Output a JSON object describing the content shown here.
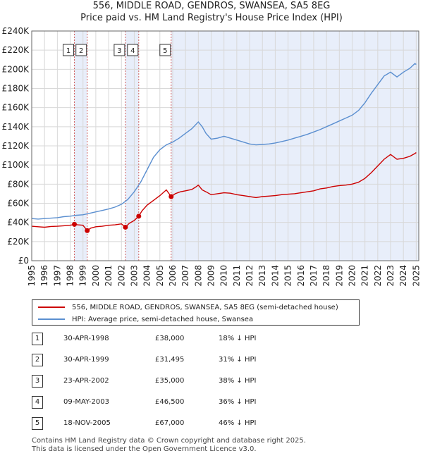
{
  "chart_data": {
    "type": "line",
    "title": "556, MIDDLE ROAD, GENDROS, SWANSEA, SA5 8EG",
    "subtitle": "Price paid vs. HM Land Registry's House Price Index (HPI)",
    "xlim": [
      1995,
      2025.2
    ],
    "ylim": [
      0,
      240000
    ],
    "y_ticks": [
      {
        "value": 0,
        "label": "£0"
      },
      {
        "value": 20000,
        "label": "£20K"
      },
      {
        "value": 40000,
        "label": "£40K"
      },
      {
        "value": 60000,
        "label": "£60K"
      },
      {
        "value": 80000,
        "label": "£80K"
      },
      {
        "value": 100000,
        "label": "£100K"
      },
      {
        "value": 120000,
        "label": "£120K"
      },
      {
        "value": 140000,
        "label": "£140K"
      },
      {
        "value": 160000,
        "label": "£160K"
      },
      {
        "value": 180000,
        "label": "£180K"
      },
      {
        "value": 200000,
        "label": "£200K"
      },
      {
        "value": 220000,
        "label": "£220K"
      },
      {
        "value": 240000,
        "label": "£240K"
      }
    ],
    "x_ticks": [
      "1995",
      "1996",
      "1997",
      "1998",
      "1999",
      "2000",
      "2001",
      "2002",
      "2003",
      "2004",
      "2005",
      "2006",
      "2007",
      "2008",
      "2009",
      "2010",
      "2011",
      "2012",
      "2013",
      "2014",
      "2015",
      "2016",
      "2017",
      "2018",
      "2019",
      "2020",
      "2021",
      "2022",
      "2023",
      "2024",
      "2025"
    ],
    "series": [
      {
        "name": "556, MIDDLE ROAD, GENDROS, SWANSEA, SA5 8EG (semi-detached house)",
        "color": "#cc0000",
        "x": [
          1995.0,
          1995.5,
          1996.0,
          1996.5,
          1997.0,
          1997.5,
          1998.0,
          1998.33,
          1998.6,
          1999.0,
          1999.33,
          1999.6,
          2000.0,
          2000.5,
          2001.0,
          2001.5,
          2002.0,
          2002.31,
          2002.6,
          2003.0,
          2003.35,
          2003.6,
          2004.0,
          2004.5,
          2005.0,
          2005.5,
          2005.88,
          2006.2,
          2006.6,
          2007.0,
          2007.5,
          2007.8,
          2008.0,
          2008.3,
          2008.6,
          2009.0,
          2009.5,
          2010.0,
          2010.5,
          2011.0,
          2011.5,
          2012.0,
          2012.5,
          2013.0,
          2013.5,
          2014.0,
          2014.5,
          2015.0,
          2015.5,
          2016.0,
          2016.5,
          2017.0,
          2017.5,
          2018.0,
          2018.5,
          2019.0,
          2019.5,
          2020.0,
          2020.5,
          2021.0,
          2021.5,
          2022.0,
          2022.5,
          2023.0,
          2023.5,
          2024.0,
          2024.5,
          2024.9,
          2025.0
        ],
        "y": [
          36000,
          35500,
          35000,
          35800,
          36000,
          36500,
          37000,
          38000,
          37500,
          37000,
          31495,
          34000,
          35500,
          36000,
          37000,
          37500,
          38500,
          35000,
          39000,
          42000,
          46500,
          52000,
          58000,
          63000,
          68000,
          74000,
          67000,
          70000,
          72000,
          73000,
          74500,
          77000,
          79000,
          74000,
          72000,
          69000,
          70000,
          71000,
          70500,
          69000,
          68000,
          67000,
          66000,
          67000,
          67500,
          68000,
          69000,
          69500,
          70000,
          71000,
          72000,
          73000,
          75000,
          76000,
          77500,
          78500,
          79000,
          80000,
          82000,
          86000,
          92000,
          99000,
          106000,
          111000,
          106000,
          107000,
          109000,
          112000,
          113000
        ]
      },
      {
        "name": "HPI: Average price, semi-detached house, Swansea",
        "color": "#5b8fd0",
        "x": [
          1995.0,
          1995.5,
          1996.0,
          1996.5,
          1997.0,
          1997.5,
          1998.0,
          1998.5,
          1999.0,
          1999.5,
          2000.0,
          2000.5,
          2001.0,
          2001.5,
          2002.0,
          2002.5,
          2003.0,
          2003.5,
          2004.0,
          2004.5,
          2005.0,
          2005.5,
          2006.0,
          2006.5,
          2007.0,
          2007.5,
          2008.0,
          2008.3,
          2008.6,
          2009.0,
          2009.5,
          2010.0,
          2010.5,
          2011.0,
          2011.5,
          2012.0,
          2012.5,
          2013.0,
          2013.5,
          2014.0,
          2014.5,
          2015.0,
          2015.5,
          2016.0,
          2016.5,
          2017.0,
          2017.5,
          2018.0,
          2018.5,
          2019.0,
          2019.5,
          2020.0,
          2020.5,
          2021.0,
          2021.5,
          2022.0,
          2022.5,
          2023.0,
          2023.5,
          2024.0,
          2024.5,
          2024.9,
          2025.0
        ],
        "y": [
          44000,
          43500,
          44000,
          44500,
          45000,
          46000,
          46500,
          47500,
          48000,
          49500,
          51000,
          52500,
          54000,
          56000,
          59000,
          64000,
          72000,
          82000,
          95000,
          108000,
          116000,
          121000,
          124000,
          128000,
          133000,
          138000,
          145000,
          140000,
          133000,
          127000,
          128000,
          130000,
          128000,
          126000,
          124000,
          122000,
          121000,
          121500,
          122000,
          123000,
          124500,
          126000,
          128000,
          130000,
          132000,
          134500,
          137000,
          140000,
          143000,
          146000,
          149000,
          152000,
          157000,
          165000,
          175000,
          184000,
          193000,
          197000,
          192000,
          197000,
          201000,
          206000,
          205000
        ]
      }
    ],
    "sales": [
      {
        "num": "1",
        "year": 1998.33,
        "price": 38000
      },
      {
        "num": "2",
        "year": 1999.33,
        "price": 31495
      },
      {
        "num": "3",
        "year": 2002.31,
        "price": 35000
      },
      {
        "num": "4",
        "year": 2003.35,
        "price": 46500
      },
      {
        "num": "5",
        "year": 2005.88,
        "price": 67000
      }
    ]
  },
  "legend": {
    "property_label": "556, MIDDLE ROAD, GENDROS, SWANSEA, SA5 8EG (semi-detached house)",
    "hpi_label": "HPI: Average price, semi-detached house, Swansea"
  },
  "sales_table": [
    {
      "num": "1",
      "date": "30-APR-1998",
      "price": "£38,000",
      "hpi": "18% ↓ HPI"
    },
    {
      "num": "2",
      "date": "30-APR-1999",
      "price": "£31,495",
      "hpi": "31% ↓ HPI"
    },
    {
      "num": "3",
      "date": "23-APR-2002",
      "price": "£35,000",
      "hpi": "38% ↓ HPI"
    },
    {
      "num": "4",
      "date": "09-MAY-2003",
      "price": "£46,500",
      "hpi": "36% ↓ HPI"
    },
    {
      "num": "5",
      "date": "18-NOV-2005",
      "price": "£67,000",
      "hpi": "46% ↓ HPI"
    }
  ],
  "footer": {
    "line1": "Contains HM Land Registry data © Crown copyright and database right 2025.",
    "line2": "This data is licensed under the Open Government Licence v3.0."
  },
  "colors": {
    "property_line": "#cc0000",
    "hpi_line": "#5b8fd0",
    "shade": "#e8eefa",
    "grid": "#d8d8d8"
  }
}
